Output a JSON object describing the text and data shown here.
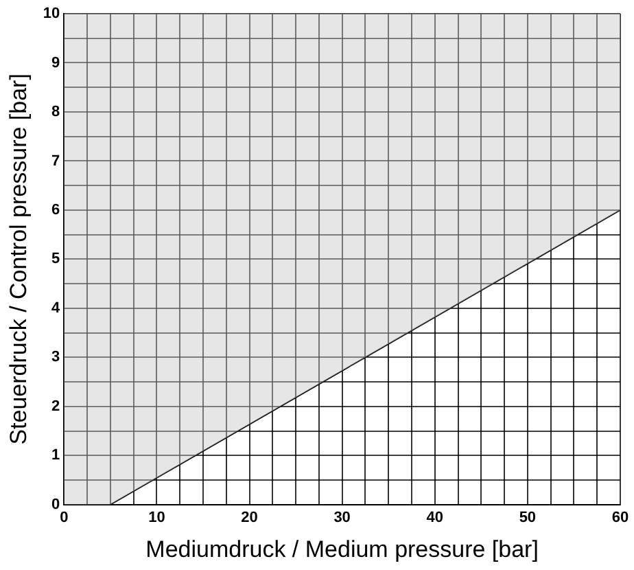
{
  "chart_data": {
    "type": "line",
    "xlabel": "Mediumdruck / Medium pressure [bar]",
    "ylabel": "Steuerdruck / Control pressure [bar]",
    "x": [
      0,
      5,
      60
    ],
    "series": [
      {
        "color": "#000000",
        "values": [
          null,
          0,
          6
        ],
        "lower": [
          0,
          0,
          6
        ],
        "upper": [
          10,
          10,
          10
        ]
      }
    ],
    "xlim": [
      0,
      60
    ],
    "xticks": [
      0,
      {
        "value": 2.5,
        "label": null
      },
      {
        "value": 5,
        "label": null
      },
      {
        "value": 7.5,
        "label": null
      },
      10,
      {
        "value": 12.5,
        "label": null
      },
      {
        "value": 15,
        "label": null
      },
      {
        "value": 17.5,
        "label": null
      },
      20,
      {
        "value": 22.5,
        "label": null
      },
      {
        "value": 25,
        "label": null
      },
      {
        "value": 27.5,
        "label": null
      },
      30,
      {
        "value": 32.5,
        "label": null
      },
      {
        "value": 35,
        "label": null
      },
      {
        "value": 37.5,
        "label": null
      },
      40,
      {
        "value": 42.5,
        "label": null
      },
      {
        "value": 45,
        "label": null
      },
      {
        "value": 47.5,
        "label": null
      },
      50,
      {
        "value": 52.5,
        "label": null
      },
      {
        "value": 55,
        "label": null
      },
      {
        "value": 57.5,
        "label": null
      },
      60
    ],
    "ylim": [
      0,
      10
    ],
    "yticks": [
      0,
      {
        "value": 0.5,
        "label": null
      },
      1,
      {
        "value": 1.5,
        "label": null
      },
      2,
      {
        "value": 2.5,
        "label": null
      },
      3,
      {
        "value": 3.5,
        "label": null
      },
      4,
      {
        "value": 4.5,
        "label": null
      },
      5,
      {
        "value": 5.5,
        "label": null
      },
      6,
      {
        "value": 6.5,
        "label": null
      },
      7,
      {
        "value": 7.5,
        "label": null
      },
      8,
      {
        "value": 8.5,
        "label": null
      },
      9,
      {
        "value": 9.5,
        "label": null
      },
      10
    ],
    "grid": true,
    "legend": false
  }
}
